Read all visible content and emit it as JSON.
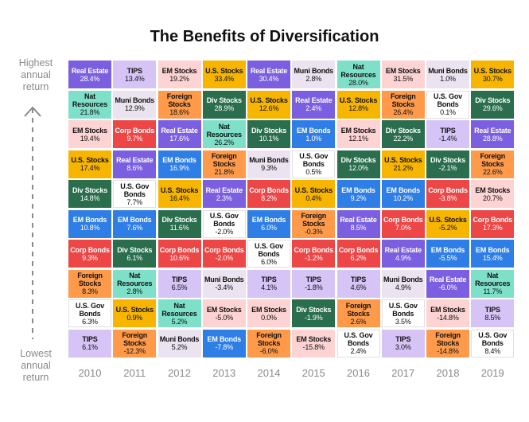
{
  "chart_data": {
    "type": "table",
    "title": "The Benefits of Diversification",
    "axis_top_label": "Highest\nannual\nreturn",
    "axis_bottom_label": "Lowest\nannual\nreturn",
    "years": [
      "2010",
      "2011",
      "2012",
      "2013",
      "2014",
      "2015",
      "2016",
      "2017",
      "2018",
      "2019"
    ],
    "colors": {
      "U.S. Stocks": "#f7b500",
      "TIPS": "#d6c4f7",
      "EM Stocks": "#fdd3d3",
      "Real Estate": "#7b5fe0",
      "Muni Bonds": "#ebe3ef",
      "Nat Resources": "#7ee0c9",
      "Div Stocks": "#2a6e4e",
      "Corp Bonds": "#ec4646",
      "Foreign Stocks": "#ff9a4a",
      "U.S. Gov Bonds": "#ffffff",
      "EM Bonds": "#2e7ee6"
    },
    "dark_text": [
      "Real Estate",
      "Div Stocks",
      "Corp Bonds",
      "EM Bonds"
    ],
    "columns": [
      [
        [
          "Real Estate",
          "28.4%"
        ],
        [
          "Nat Resources",
          "21.8%"
        ],
        [
          "EM Stocks",
          "19.4%"
        ],
        [
          "U.S. Stocks",
          "17.4%"
        ],
        [
          "Div Stocks",
          "14.8%"
        ],
        [
          "EM Bonds",
          "10.8%"
        ],
        [
          "Corp Bonds",
          "9.3%"
        ],
        [
          "Foreign Stocks",
          "8.3%"
        ],
        [
          "U.S. Gov Bonds",
          "6.3%"
        ],
        [
          "TIPS",
          "6.1%"
        ]
      ],
      [
        [
          "TIPS",
          "13.4%"
        ],
        [
          "Muni Bonds",
          "12.9%"
        ],
        [
          "Corp Bonds",
          "9.7%"
        ],
        [
          "Real Estate",
          "8.6%"
        ],
        [
          "U.S. Gov Bonds",
          "7.7%"
        ],
        [
          "EM Bonds",
          "7.6%"
        ],
        [
          "Div Stocks",
          "6.1%"
        ],
        [
          "Nat Resources",
          "2.8%"
        ],
        [
          "U.S. Stocks",
          "0.9%"
        ],
        [
          "Foreign Stocks",
          "-12.3%"
        ]
      ],
      [
        [
          "EM Stocks",
          "19.2%"
        ],
        [
          "Foreign Stocks",
          "18.6%"
        ],
        [
          "Real Estate",
          "17.6%"
        ],
        [
          "EM Bonds",
          "16.9%"
        ],
        [
          "U.S. Stocks",
          "16.4%"
        ],
        [
          "Div Stocks",
          "11.6%"
        ],
        [
          "Corp Bonds",
          "10.6%"
        ],
        [
          "TIPS",
          "6.5%"
        ],
        [
          "Nat Resources",
          "5.2%"
        ],
        [
          "Muni Bonds",
          "5.2%"
        ]
      ],
      [
        [
          "U.S. Stocks",
          "33.4%"
        ],
        [
          "Div Stocks",
          "28.9%"
        ],
        [
          "Nat Resources",
          "26.2%"
        ],
        [
          "Foreign Stocks",
          "21.8%"
        ],
        [
          "Real Estate",
          "2.3%"
        ],
        [
          "U.S. Gov Bonds",
          "-2.0%"
        ],
        [
          "Corp Bonds",
          "-2.0%"
        ],
        [
          "Muni Bonds",
          "-3.4%"
        ],
        [
          "EM Stocks",
          "-5.0%"
        ],
        [
          "EM Bonds",
          "-7.8%"
        ]
      ],
      [
        [
          "Real Estate",
          "30.4%"
        ],
        [
          "U.S. Stocks",
          "12.6%"
        ],
        [
          "Div Stocks",
          "10.1%"
        ],
        [
          "Muni Bonds",
          "9.3%"
        ],
        [
          "Corp Bonds",
          "8.2%"
        ],
        [
          "EM Bonds",
          "6.0%"
        ],
        [
          "U.S. Gov Bonds",
          "6.0%"
        ],
        [
          "TIPS",
          "4.1%"
        ],
        [
          "EM Stocks",
          "0.0%"
        ],
        [
          "Foreign Stocks",
          "-6.0%"
        ]
      ],
      [
        [
          "Muni Bonds",
          "2.8%"
        ],
        [
          "Real Estate",
          "2.4%"
        ],
        [
          "EM Bonds",
          "1.0%"
        ],
        [
          "U.S. Gov Bonds",
          "0.5%"
        ],
        [
          "U.S. Stocks",
          "0.4%"
        ],
        [
          "Foreign Stocks",
          "-0.3%"
        ],
        [
          "Corp Bonds",
          "-1.2%"
        ],
        [
          "TIPS",
          "-1.8%"
        ],
        [
          "Div Stocks",
          "-1.9%"
        ],
        [
          "EM Stocks",
          "-15.8%"
        ]
      ],
      [
        [
          "Nat Resources",
          "28.0%"
        ],
        [
          "U.S. Stocks",
          "12.8%"
        ],
        [
          "EM Stocks",
          "12.1%"
        ],
        [
          "Div Stocks",
          "12.0%"
        ],
        [
          "EM Bonds",
          "9.2%"
        ],
        [
          "Real Estate",
          "8.5%"
        ],
        [
          "Corp Bonds",
          "6.2%"
        ],
        [
          "TIPS",
          "4.6%"
        ],
        [
          "Foreign Stocks",
          "2.6%"
        ],
        [
          "U.S. Gov Bonds",
          "2.4%"
        ]
      ],
      [
        [
          "EM Stocks",
          "31.5%"
        ],
        [
          "Foreign Stocks",
          "26.4%"
        ],
        [
          "Div Stocks",
          "22.2%"
        ],
        [
          "U.S. Stocks",
          "21.2%"
        ],
        [
          "EM Bonds",
          "10.2%"
        ],
        [
          "Corp Bonds",
          "7.0%"
        ],
        [
          "Real Estate",
          "4.9%"
        ],
        [
          "Muni Bonds",
          "4.9%"
        ],
        [
          "U.S. Gov Bonds",
          "3.5%"
        ],
        [
          "TIPS",
          "3.0%"
        ]
      ],
      [
        [
          "Muni Bonds",
          "1.0%"
        ],
        [
          "U.S. Gov Bonds",
          "0.1%"
        ],
        [
          "TIPS",
          "-1.4%"
        ],
        [
          "Div Stocks",
          "-2.1%"
        ],
        [
          "Corp Bonds",
          "-3.8%"
        ],
        [
          "U.S. Stocks",
          "-5.2%"
        ],
        [
          "EM Bonds",
          "-5.5%"
        ],
        [
          "Real Estate",
          "-6.0%"
        ],
        [
          "EM Stocks",
          "-14.8%"
        ],
        [
          "Foreign Stocks",
          "-14.8%"
        ]
      ],
      [
        [
          "U.S. Stocks",
          "30.7%"
        ],
        [
          "Div Stocks",
          "29.6%"
        ],
        [
          "Real Estate",
          "28.8%"
        ],
        [
          "Foreign Stocks",
          "22.6%"
        ],
        [
          "EM Stocks",
          "20.7%"
        ],
        [
          "Corp Bonds",
          "17.3%"
        ],
        [
          "EM Bonds",
          "15.4%"
        ],
        [
          "Nat Resources",
          "11.7%"
        ],
        [
          "TIPS",
          "8.5%"
        ],
        [
          "U.S. Gov Bonds",
          "8.4%"
        ]
      ]
    ]
  }
}
